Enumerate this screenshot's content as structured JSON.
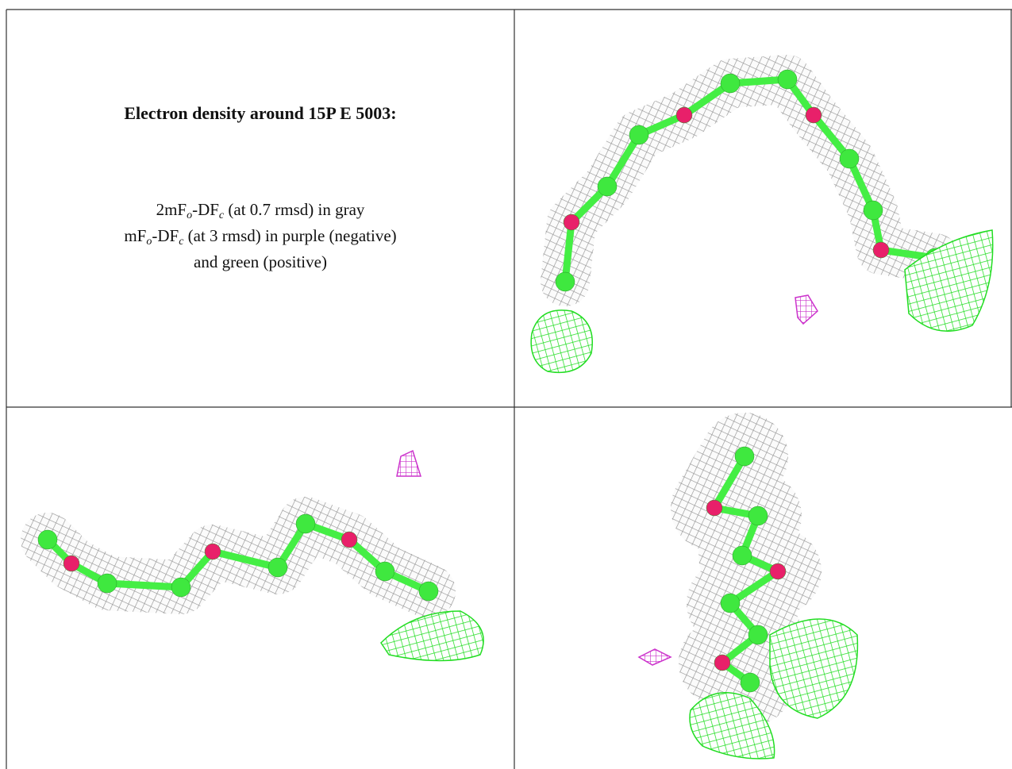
{
  "caption": {
    "title": "Electron density around 15P E 5003:",
    "lines": [
      [
        "2mF",
        "o",
        "-DF",
        "c",
        " (at 0.7 rmsd) in gray"
      ],
      [
        "mF",
        "o",
        "-DF",
        "c",
        " (at 3 rmsd) in purple (negative)"
      ],
      [
        "and green (positive)"
      ]
    ]
  }
}
